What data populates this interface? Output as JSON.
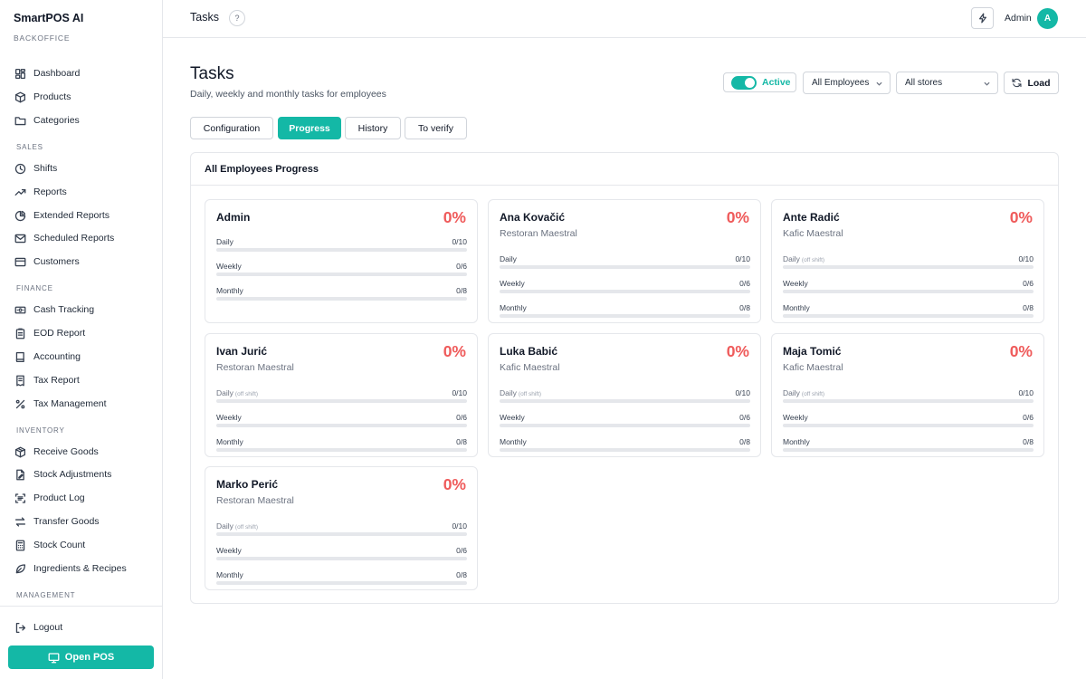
{
  "sidebar": {
    "brand": "SmartPOS AI",
    "brand_sub": "BACKOFFICE",
    "top_items": [
      {
        "label": "Dashboard",
        "icon": "dashboard-icon"
      },
      {
        "label": "Products",
        "icon": "box-icon"
      },
      {
        "label": "Categories",
        "icon": "folder-icon"
      }
    ],
    "sections": [
      {
        "title": "SALES",
        "items": [
          {
            "label": "Shifts",
            "icon": "clock-icon"
          },
          {
            "label": "Reports",
            "icon": "trend-icon"
          },
          {
            "label": "Extended Reports",
            "icon": "pie-icon"
          },
          {
            "label": "Scheduled Reports",
            "icon": "mail-icon"
          },
          {
            "label": "Customers",
            "icon": "card-icon"
          }
        ]
      },
      {
        "title": "FINANCE",
        "items": [
          {
            "label": "Cash Tracking",
            "icon": "cash-icon"
          },
          {
            "label": "EOD Report",
            "icon": "clipboard-icon"
          },
          {
            "label": "Accounting",
            "icon": "book-icon"
          },
          {
            "label": "Tax Report",
            "icon": "receipt-icon"
          },
          {
            "label": "Tax Management",
            "icon": "percent-icon"
          }
        ]
      },
      {
        "title": "INVENTORY",
        "items": [
          {
            "label": "Receive Goods",
            "icon": "package-icon"
          },
          {
            "label": "Stock Adjustments",
            "icon": "file-edit-icon"
          },
          {
            "label": "Product Log",
            "icon": "scan-icon"
          },
          {
            "label": "Transfer Goods",
            "icon": "transfer-icon"
          },
          {
            "label": "Stock Count",
            "icon": "calculator-icon"
          },
          {
            "label": "Ingredients & Recipes",
            "icon": "leaf-icon"
          }
        ]
      },
      {
        "title": "MANAGEMENT",
        "items": []
      }
    ],
    "logout_label": "Logout",
    "open_pos_label": "Open POS"
  },
  "topbar": {
    "title": "Tasks",
    "help_glyph": "?",
    "user_name": "Admin",
    "avatar_initial": "A"
  },
  "page": {
    "title": "Tasks",
    "subtitle": "Daily, weekly and monthly tasks for employees",
    "active_toggle_label": "Active",
    "active_toggle_on": true,
    "employee_select": "All Employees",
    "store_select": "All stores",
    "load_label": "Load",
    "accent_color": "#14b8a6",
    "percent_color": "#ef5b5b"
  },
  "tabs": [
    {
      "label": "Configuration",
      "active": false
    },
    {
      "label": "Progress",
      "active": true
    },
    {
      "label": "History",
      "active": false
    },
    {
      "label": "To verify",
      "active": false
    }
  ],
  "panel": {
    "title": "All Employees Progress",
    "employees": [
      {
        "name": "Admin",
        "store": "",
        "percent": "0%",
        "daily_off_shift": false,
        "daily": {
          "label": "Daily",
          "done": 0,
          "total": 10,
          "count": "0/10"
        },
        "weekly": {
          "label": "Weekly",
          "done": 0,
          "total": 6,
          "count": "0/6"
        },
        "monthly": {
          "label": "Monthly",
          "done": 0,
          "total": 8,
          "count": "0/8"
        }
      },
      {
        "name": "Ana Kovačić",
        "store": "Restoran Maestral",
        "percent": "0%",
        "daily_off_shift": false,
        "daily": {
          "label": "Daily",
          "done": 0,
          "total": 10,
          "count": "0/10"
        },
        "weekly": {
          "label": "Weekly",
          "done": 0,
          "total": 6,
          "count": "0/6"
        },
        "monthly": {
          "label": "Monthly",
          "done": 0,
          "total": 8,
          "count": "0/8"
        }
      },
      {
        "name": "Ante Radić",
        "store": "Kafic Maestral",
        "percent": "0%",
        "daily_off_shift": true,
        "daily": {
          "label": "Daily",
          "done": 0,
          "total": 10,
          "count": "0/10"
        },
        "weekly": {
          "label": "Weekly",
          "done": 0,
          "total": 6,
          "count": "0/6"
        },
        "monthly": {
          "label": "Monthly",
          "done": 0,
          "total": 8,
          "count": "0/8"
        }
      },
      {
        "name": "Ivan Jurić",
        "store": "Restoran Maestral",
        "percent": "0%",
        "daily_off_shift": true,
        "daily": {
          "label": "Daily",
          "done": 0,
          "total": 10,
          "count": "0/10"
        },
        "weekly": {
          "label": "Weekly",
          "done": 0,
          "total": 6,
          "count": "0/6"
        },
        "monthly": {
          "label": "Monthly",
          "done": 0,
          "total": 8,
          "count": "0/8"
        }
      },
      {
        "name": "Luka Babić",
        "store": "Kafic Maestral",
        "percent": "0%",
        "daily_off_shift": true,
        "daily": {
          "label": "Daily",
          "done": 0,
          "total": 10,
          "count": "0/10"
        },
        "weekly": {
          "label": "Weekly",
          "done": 0,
          "total": 6,
          "count": "0/6"
        },
        "monthly": {
          "label": "Monthly",
          "done": 0,
          "total": 8,
          "count": "0/8"
        }
      },
      {
        "name": "Maja Tomić",
        "store": "Kafic Maestral",
        "percent": "0%",
        "daily_off_shift": true,
        "daily": {
          "label": "Daily",
          "done": 0,
          "total": 10,
          "count": "0/10"
        },
        "weekly": {
          "label": "Weekly",
          "done": 0,
          "total": 6,
          "count": "0/6"
        },
        "monthly": {
          "label": "Monthly",
          "done": 0,
          "total": 8,
          "count": "0/8"
        }
      },
      {
        "name": "Marko Perić",
        "store": "Restoran Maestral",
        "percent": "0%",
        "daily_off_shift": true,
        "daily": {
          "label": "Daily",
          "done": 0,
          "total": 10,
          "count": "0/10"
        },
        "weekly": {
          "label": "Weekly",
          "done": 0,
          "total": 6,
          "count": "0/6"
        },
        "monthly": {
          "label": "Monthly",
          "done": 0,
          "total": 8,
          "count": "0/8"
        }
      }
    ],
    "off_shift_note": "(off shift)"
  }
}
